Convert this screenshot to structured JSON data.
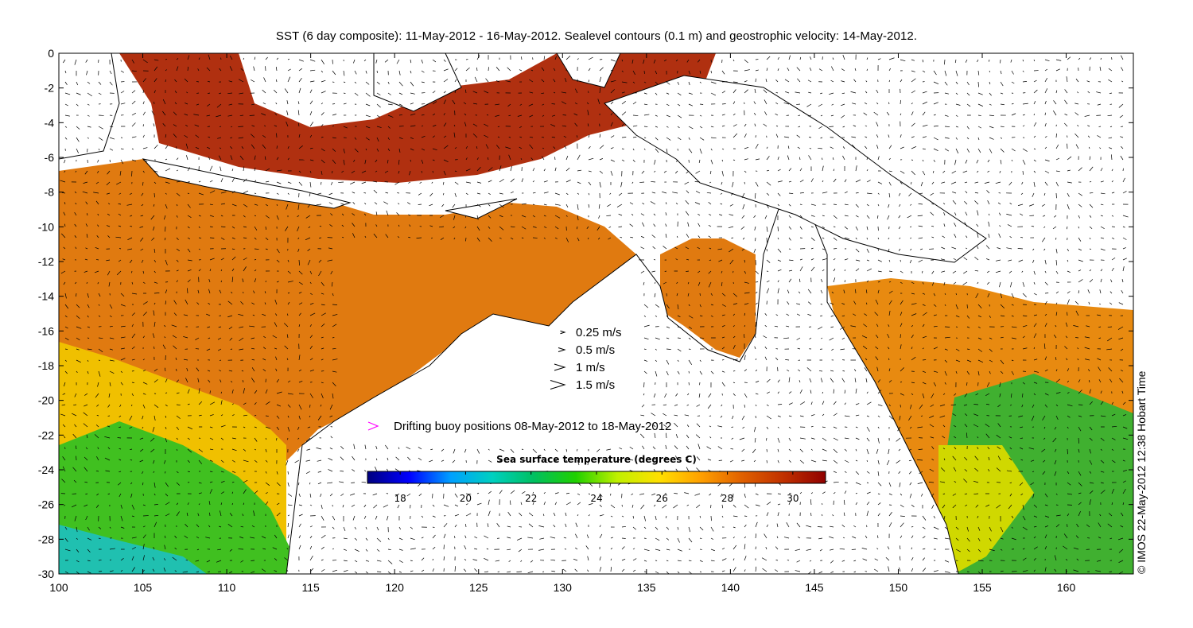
{
  "title": "SST (6 day composite): 11-May-2012 - 16-May-2012. Sealevel contours (0.1 m) and geostrophic velocity: 14-May-2012.",
  "credit": "© IMOS 22-May-2012 12:38 Hobart Time",
  "axes": {
    "x_ticks": [
      "100",
      "105",
      "110",
      "115",
      "120",
      "125",
      "130",
      "135",
      "140",
      "145",
      "150",
      "155",
      "160"
    ],
    "y_ticks": [
      "0",
      "-2",
      "-4",
      "-6",
      "-8",
      "-10",
      "-12",
      "-14",
      "-16",
      "-18",
      "-20",
      "-22",
      "-24",
      "-26",
      "-28",
      "-30"
    ],
    "xlim": [
      100,
      164
    ],
    "ylim": [
      -30,
      0
    ]
  },
  "velocity_legend": [
    {
      "label": "0.25 m/s",
      "speed": 0.25
    },
    {
      "label": "0.5 m/s",
      "speed": 0.5
    },
    {
      "label": "1 m/s",
      "speed": 1
    },
    {
      "label": "1.5 m/s",
      "speed": 1.5
    }
  ],
  "buoy_legend": {
    "label": "Drifting buoy positions 08-May-2012 to 18-May-2012",
    "color": "#ff00ff"
  },
  "colorbar": {
    "title": "Sea surface temperature (degrees C)",
    "range": [
      17,
      31
    ],
    "ticks": [
      "18",
      "20",
      "22",
      "24",
      "26",
      "28",
      "30"
    ],
    "colors": [
      "#00007f",
      "#0000ff",
      "#00a0ff",
      "#00d0c0",
      "#00c060",
      "#20d000",
      "#c0f000",
      "#ffe000",
      "#ffa000",
      "#e06000",
      "#c03000",
      "#900000"
    ]
  },
  "colors": {
    "land": "#ffffff",
    "coast": "#000000",
    "contour": "#ffffff"
  }
}
